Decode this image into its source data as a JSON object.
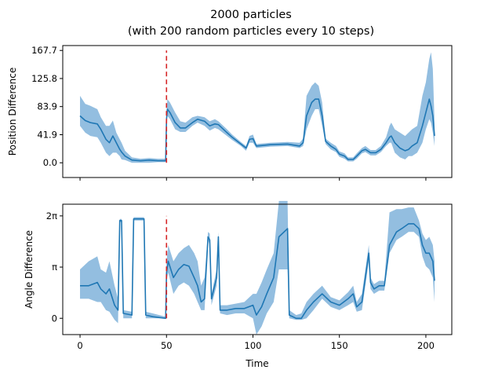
{
  "chart_data": {
    "title_line1": "2000 particles",
    "title_line2": "(with 200 random particles every 10 steps)",
    "xlabel": "Time",
    "x_ticks": [
      "0",
      "50",
      "100",
      "150",
      "200"
    ],
    "xlim": [
      -10,
      215
    ],
    "panels": [
      {
        "type": "line",
        "ylabel": "Position Difference",
        "ylim": [
          -22,
          175
        ],
        "y_ticks": [
          {
            "v": 0.0,
            "t": "0.0"
          },
          {
            "v": 41.9,
            "t": "41.9"
          },
          {
            "v": 83.9,
            "t": "83.9"
          },
          {
            "v": 125.8,
            "t": "125.8"
          },
          {
            "v": 167.7,
            "t": "167.7"
          }
        ],
        "marker_x": 50,
        "marker_range": [
          0,
          167.7
        ],
        "marker_color": "#d62728",
        "line_color": "#1f77b4",
        "band_color": "#6fa8d6",
        "points": [
          [
            0,
            70,
            55,
            100
          ],
          [
            3,
            63,
            45,
            88
          ],
          [
            6,
            60,
            40,
            85
          ],
          [
            10,
            58,
            38,
            80
          ],
          [
            12,
            50,
            30,
            68
          ],
          [
            15,
            35,
            15,
            55
          ],
          [
            17,
            30,
            10,
            55
          ],
          [
            19,
            40,
            15,
            63
          ],
          [
            21,
            30,
            15,
            45
          ],
          [
            23,
            20,
            10,
            35
          ],
          [
            24,
            16,
            5,
            30
          ],
          [
            26,
            10,
            4,
            18
          ],
          [
            30,
            4,
            0,
            8
          ],
          [
            35,
            3,
            0,
            6
          ],
          [
            40,
            4,
            0,
            7
          ],
          [
            45,
            3,
            1,
            6
          ],
          [
            49.5,
            3,
            1,
            6
          ],
          [
            50,
            65,
            60,
            75
          ],
          [
            50.5,
            80,
            70,
            95
          ],
          [
            52,
            75,
            65,
            90
          ],
          [
            55,
            60,
            50,
            75
          ],
          [
            58,
            52,
            46,
            62
          ],
          [
            61,
            52,
            46,
            60
          ],
          [
            65,
            60,
            55,
            68
          ],
          [
            68,
            65,
            60,
            70
          ],
          [
            72,
            62,
            55,
            68
          ],
          [
            75,
            55,
            48,
            62
          ],
          [
            78,
            58,
            52,
            65
          ],
          [
            80,
            57,
            50,
            62
          ],
          [
            85,
            45,
            40,
            50
          ],
          [
            88,
            38,
            34,
            42
          ],
          [
            93,
            28,
            25,
            31
          ],
          [
            96,
            22,
            18,
            25
          ],
          [
            98,
            35,
            30,
            40
          ],
          [
            100,
            36,
            30,
            42
          ],
          [
            102,
            25,
            22,
            28
          ],
          [
            110,
            27,
            24,
            30
          ],
          [
            120,
            28,
            25,
            31
          ],
          [
            127,
            25,
            22,
            30
          ],
          [
            129,
            30,
            25,
            36
          ],
          [
            131,
            70,
            50,
            100
          ],
          [
            134,
            90,
            70,
            115
          ],
          [
            136,
            95,
            80,
            120
          ],
          [
            138,
            95,
            80,
            115
          ],
          [
            140,
            70,
            55,
            90
          ],
          [
            142,
            32,
            28,
            36
          ],
          [
            145,
            25,
            20,
            30
          ],
          [
            148,
            20,
            16,
            25
          ],
          [
            150,
            13,
            9,
            17
          ],
          [
            153,
            10,
            6,
            14
          ],
          [
            155,
            5,
            2,
            8
          ],
          [
            158,
            5,
            2,
            8
          ],
          [
            160,
            10,
            6,
            14
          ],
          [
            163,
            18,
            14,
            22
          ],
          [
            165,
            20,
            16,
            25
          ],
          [
            168,
            15,
            11,
            19
          ],
          [
            171,
            15,
            11,
            19
          ],
          [
            174,
            20,
            16,
            25
          ],
          [
            177,
            30,
            25,
            38
          ],
          [
            179,
            38,
            30,
            55
          ],
          [
            180,
            40,
            30,
            60
          ],
          [
            182,
            30,
            15,
            50
          ],
          [
            185,
            22,
            8,
            45
          ],
          [
            188,
            18,
            5,
            40
          ],
          [
            190,
            20,
            10,
            45
          ],
          [
            192,
            25,
            10,
            50
          ],
          [
            195,
            30,
            15,
            55
          ],
          [
            198,
            55,
            30,
            100
          ],
          [
            200,
            75,
            50,
            120
          ],
          [
            202,
            95,
            65,
            155
          ],
          [
            203,
            85,
            60,
            165
          ],
          [
            204,
            70,
            45,
            140
          ],
          [
            205,
            40,
            25,
            60
          ]
        ]
      },
      {
        "type": "line",
        "ylabel": "Angle Difference",
        "ylim": [
          -1.0,
          7.0
        ],
        "y_ticks": [
          {
            "v": 0,
            "t": "0"
          },
          {
            "v": 3.1416,
            "t": "π"
          },
          {
            "v": 6.2832,
            "t": "2π"
          }
        ],
        "marker_x": 50,
        "marker_range": [
          0,
          6.2832
        ],
        "marker_color": "#d62728",
        "line_color": "#1f77b4",
        "band_color": "#6fa8d6",
        "points": [
          [
            0,
            2.0,
            1.2,
            3.0
          ],
          [
            5,
            2.0,
            1.2,
            3.5
          ],
          [
            10,
            2.2,
            1.0,
            3.8
          ],
          [
            12,
            1.8,
            1.0,
            3.0
          ],
          [
            15,
            1.5,
            0.5,
            2.8
          ],
          [
            17,
            1.8,
            0.4,
            3.5
          ],
          [
            20,
            0.8,
            -0.1,
            2.0
          ],
          [
            22,
            0.5,
            -0.3,
            1.2
          ],
          [
            23,
            6.0,
            5.9,
            6.1
          ],
          [
            24,
            6.0,
            5.9,
            6.1
          ],
          [
            25,
            0.3,
            0.0,
            0.5
          ],
          [
            30,
            0.2,
            0.0,
            0.4
          ],
          [
            31,
            6.1,
            6.0,
            6.2
          ],
          [
            37,
            6.1,
            6.0,
            6.2
          ],
          [
            38,
            0.2,
            0.0,
            0.4
          ],
          [
            42,
            0.1,
            0.0,
            0.3
          ],
          [
            49.5,
            0.0,
            0.0,
            0.1
          ],
          [
            50,
            2.8,
            2.3,
            3.5
          ],
          [
            51,
            3.5,
            2.8,
            4.5
          ],
          [
            54,
            2.5,
            1.5,
            3.5
          ],
          [
            57,
            3.0,
            2.0,
            4.0
          ],
          [
            60,
            3.3,
            2.2,
            4.3
          ],
          [
            63,
            3.2,
            2.0,
            4.5
          ],
          [
            66,
            2.5,
            1.5,
            4.0
          ],
          [
            68,
            2.0,
            1.0,
            3.5
          ],
          [
            70,
            1.0,
            0.5,
            2.0
          ],
          [
            72,
            1.2,
            0.5,
            2.5
          ],
          [
            74,
            5.0,
            4.8,
            5.3
          ],
          [
            75,
            4.8,
            4.5,
            5.2
          ],
          [
            76,
            1.2,
            0.8,
            1.5
          ],
          [
            79,
            2.5,
            2.0,
            3.0
          ],
          [
            80,
            5.0,
            4.5,
            5.3
          ],
          [
            81,
            0.5,
            0.3,
            0.8
          ],
          [
            85,
            0.5,
            0.2,
            0.8
          ],
          [
            90,
            0.6,
            0.3,
            0.9
          ],
          [
            95,
            0.6,
            0.3,
            1.0
          ],
          [
            100,
            0.8,
            0.0,
            1.5
          ],
          [
            102,
            0.2,
            -1.0,
            1.5
          ],
          [
            105,
            0.7,
            -0.5,
            2.2
          ],
          [
            108,
            1.5,
            0.3,
            3.0
          ],
          [
            112,
            2.5,
            1.0,
            4.0
          ],
          [
            115,
            5.0,
            3.0,
            7.2
          ],
          [
            120,
            5.5,
            3.0,
            7.2
          ],
          [
            121,
            0.2,
            0.0,
            0.5
          ],
          [
            125,
            0.0,
            -0.1,
            0.2
          ],
          [
            128,
            0.0,
            -0.1,
            0.3
          ],
          [
            131,
            0.5,
            0.0,
            1.0
          ],
          [
            135,
            1.0,
            0.5,
            1.5
          ],
          [
            140,
            1.5,
            1.2,
            2.0
          ],
          [
            145,
            1.0,
            0.7,
            1.3
          ],
          [
            150,
            0.8,
            0.5,
            1.1
          ],
          [
            155,
            1.2,
            0.8,
            1.6
          ],
          [
            158,
            1.5,
            1.0,
            2.0
          ],
          [
            160,
            0.7,
            0.4,
            1.0
          ],
          [
            163,
            1.0,
            0.5,
            1.5
          ],
          [
            167,
            4.0,
            3.5,
            4.5
          ],
          [
            168,
            2.2,
            1.8,
            2.5
          ],
          [
            170,
            1.8,
            1.5,
            2.1
          ],
          [
            173,
            2.0,
            1.7,
            2.3
          ],
          [
            176,
            2.0,
            1.7,
            2.3
          ],
          [
            179,
            4.5,
            4.0,
            6.5
          ],
          [
            183,
            5.3,
            4.8,
            6.7
          ],
          [
            186,
            5.5,
            5.0,
            6.7
          ],
          [
            190,
            5.8,
            5.3,
            6.8
          ],
          [
            193,
            5.8,
            5.3,
            6.8
          ],
          [
            196,
            5.5,
            5.0,
            6.0
          ],
          [
            198,
            4.5,
            3.8,
            5.2
          ],
          [
            200,
            4.0,
            3.2,
            4.8
          ],
          [
            202,
            4.0,
            3.0,
            5.0
          ],
          [
            204,
            3.5,
            2.5,
            4.5
          ],
          [
            205,
            2.3,
            1.0,
            3.5
          ]
        ]
      }
    ]
  }
}
